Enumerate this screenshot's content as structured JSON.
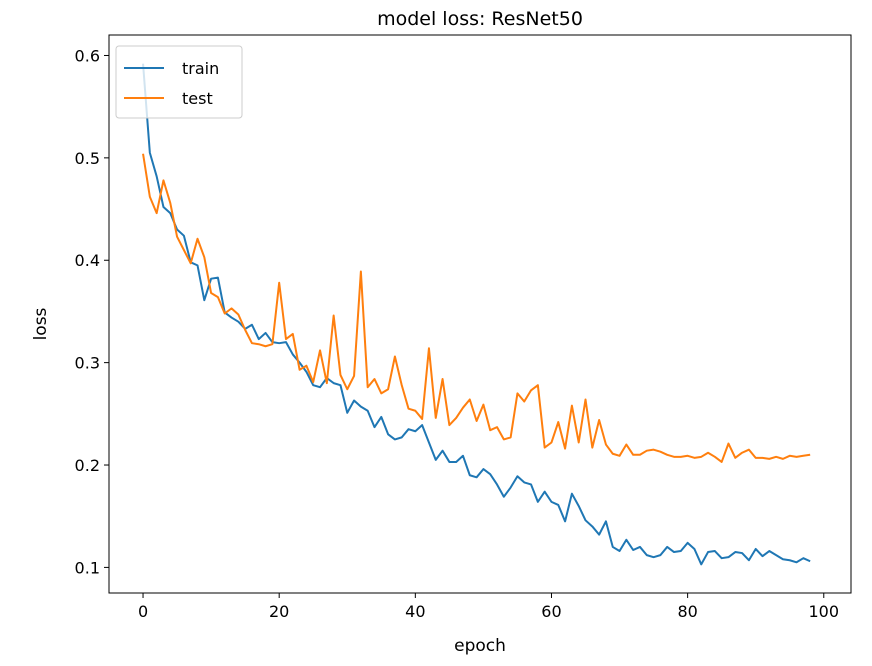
{
  "chart_data": {
    "type": "line",
    "title": "model loss: ResNet50",
    "xlabel": "epoch",
    "ylabel": "loss",
    "xlim": [
      -5,
      104
    ],
    "ylim": [
      0.075,
      0.62
    ],
    "xticks": [
      0,
      20,
      40,
      60,
      80,
      100
    ],
    "yticks": [
      0.1,
      0.2,
      0.3,
      0.4,
      0.5,
      0.6
    ],
    "ytick_labels": [
      "0.1",
      "0.2",
      "0.3",
      "0.4",
      "0.5",
      "0.6"
    ],
    "grid": false,
    "legend_position": "top-left",
    "series": [
      {
        "name": "train",
        "color": "#1f77b4",
        "values": [
          0.592,
          0.505,
          0.482,
          0.452,
          0.446,
          0.43,
          0.424,
          0.398,
          0.395,
          0.361,
          0.382,
          0.383,
          0.349,
          0.344,
          0.34,
          0.333,
          0.337,
          0.323,
          0.329,
          0.32,
          0.319,
          0.32,
          0.308,
          0.3,
          0.291,
          0.278,
          0.276,
          0.285,
          0.28,
          0.278,
          0.251,
          0.263,
          0.257,
          0.253,
          0.237,
          0.247,
          0.23,
          0.225,
          0.227,
          0.235,
          0.233,
          0.239,
          0.222,
          0.205,
          0.214,
          0.203,
          0.203,
          0.209,
          0.19,
          0.188,
          0.196,
          0.191,
          0.181,
          0.169,
          0.178,
          0.189,
          0.183,
          0.181,
          0.164,
          0.174,
          0.164,
          0.161,
          0.145,
          0.172,
          0.16,
          0.146,
          0.14,
          0.132,
          0.145,
          0.12,
          0.116,
          0.127,
          0.117,
          0.12,
          0.112,
          0.11,
          0.112,
          0.12,
          0.115,
          0.116,
          0.124,
          0.118,
          0.103,
          0.115,
          0.116,
          0.109,
          0.11,
          0.115,
          0.114,
          0.107,
          0.118,
          0.111,
          0.116,
          0.112,
          0.108,
          0.107,
          0.105,
          0.109,
          0.106
        ]
      },
      {
        "name": "test",
        "color": "#ff7f0e",
        "values": [
          0.504,
          0.462,
          0.446,
          0.478,
          0.456,
          0.423,
          0.41,
          0.397,
          0.421,
          0.403,
          0.368,
          0.364,
          0.348,
          0.353,
          0.347,
          0.332,
          0.319,
          0.318,
          0.316,
          0.318,
          0.378,
          0.323,
          0.328,
          0.293,
          0.297,
          0.281,
          0.312,
          0.28,
          0.346,
          0.288,
          0.274,
          0.287,
          0.389,
          0.276,
          0.284,
          0.27,
          0.274,
          0.306,
          0.278,
          0.255,
          0.253,
          0.245,
          0.314,
          0.246,
          0.284,
          0.239,
          0.246,
          0.256,
          0.264,
          0.243,
          0.259,
          0.234,
          0.237,
          0.225,
          0.227,
          0.27,
          0.262,
          0.273,
          0.278,
          0.217,
          0.222,
          0.242,
          0.216,
          0.258,
          0.222,
          0.264,
          0.217,
          0.244,
          0.22,
          0.211,
          0.209,
          0.22,
          0.21,
          0.21,
          0.214,
          0.215,
          0.213,
          0.21,
          0.208,
          0.208,
          0.209,
          0.207,
          0.208,
          0.212,
          0.208,
          0.203,
          0.221,
          0.207,
          0.212,
          0.215,
          0.207,
          0.207,
          0.206,
          0.208,
          0.206,
          0.209,
          0.208,
          0.209,
          0.21
        ]
      }
    ]
  }
}
